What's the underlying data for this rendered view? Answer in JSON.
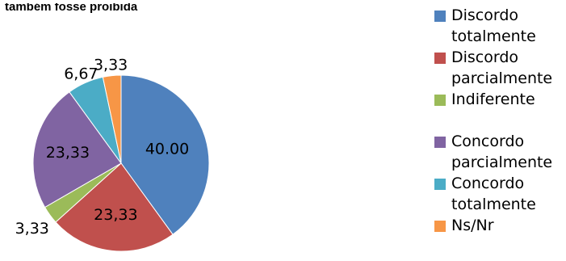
{
  "chart_data": {
    "type": "pie",
    "title": "também fosse proibida",
    "categories": [
      "Discordo totalmente",
      "Discordo parcialmente",
      "Indiferente",
      "Concordo parcialmente",
      "Concordo totalmente",
      "Ns/Nr"
    ],
    "values": [
      40.0,
      23.33,
      3.33,
      23.33,
      6.67,
      3.33
    ],
    "data_labels": [
      "40.00",
      "23,33",
      "3,33",
      "23,33",
      "6,67",
      "3,33"
    ],
    "colors": [
      "#4F81BD",
      "#C0504D",
      "#9BBB59",
      "#8064A2",
      "#4BACC6",
      "#F79646"
    ],
    "legend_position": "right"
  },
  "legend": {
    "items": [
      {
        "line1": "Discordo",
        "line2": "totalmente"
      },
      {
        "line1": "Discordo",
        "line2": "parcialmente"
      },
      {
        "line1": "Indiferente",
        "line2": ""
      },
      {
        "line1": "Concordo",
        "line2": "parcialmente"
      },
      {
        "line1": "Concordo",
        "line2": "totalmente"
      },
      {
        "line1": "Ns/Nr",
        "line2": ""
      }
    ]
  }
}
